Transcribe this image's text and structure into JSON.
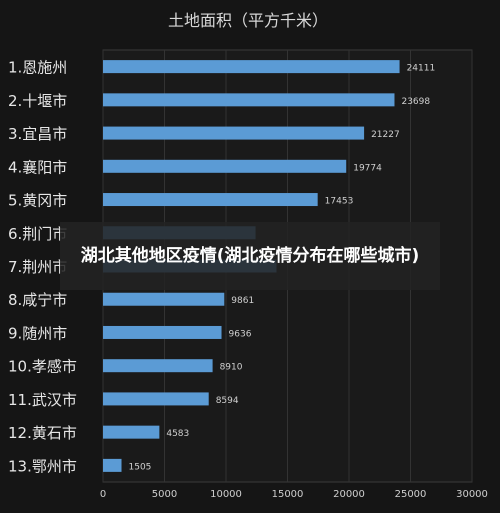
{
  "chart_data": {
    "type": "bar",
    "orientation": "horizontal",
    "title": "土地面积（平方千米）",
    "categories": [
      "1.恩施州",
      "2.十堰市",
      "3.宜昌市",
      "4.襄阳市",
      "5.黄冈市",
      "6.荆门市",
      "7.荆州市",
      "8.咸宁市",
      "9.随州市",
      "10.孝感市",
      "11.武汉市",
      "12.黄石市",
      "13.鄂州市"
    ],
    "values": [
      24111,
      23698,
      21227,
      19774,
      17453,
      12404,
      14104,
      9861,
      9636,
      8910,
      8594,
      4583,
      1505
    ],
    "value_labels": [
      "24111",
      "23698",
      "21227",
      "19774",
      "17453",
      "",
      "",
      "9861",
      "9636",
      "8910",
      "8594",
      "4583",
      "1505"
    ],
    "xlim": [
      0,
      30000
    ],
    "xticks": [
      0,
      5000,
      10000,
      15000,
      20000,
      25000,
      30000
    ],
    "grid": true,
    "legend": "none",
    "bar_color": "#5b9bd5"
  },
  "overlay": {
    "caption": "湖北其他地区疫情(湖北疫情分布在哪些城市)"
  }
}
